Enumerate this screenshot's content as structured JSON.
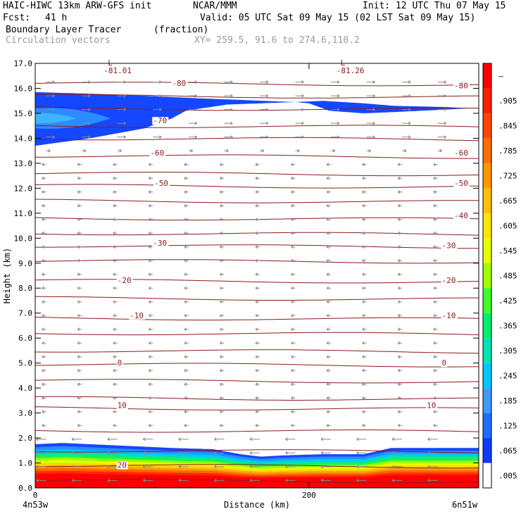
{
  "header": {
    "model": "HAIC-HIWC 13km ARW-GFS init",
    "org": "NCAR/MMM",
    "init": "Init: 12 UTC Thu 07 May 15",
    "fcst_label": "Fcst:",
    "fcst_value": "41 h",
    "valid": "Valid: 05 UTC Sat 09 May 15 (02 LST Sat 09 May 15)",
    "field_name": "Boundary Layer Tracer",
    "field_units": "(fraction)",
    "vector_label": "Circulation vectors",
    "xy_label": "XY= 259.5, 91.6 to 274.6,110.2"
  },
  "chart_data": {
    "type": "heatmap",
    "xlabel": "Distance (km)",
    "ylabel": "Height (km)",
    "xlim": [
      0,
      324
    ],
    "ylim": [
      0,
      17
    ],
    "x_ticks": [
      0,
      200
    ],
    "y_ticks": [
      "0.0",
      "1.0",
      "2.0",
      "3.0",
      "4.0",
      "5.0",
      "6.0",
      "7.0",
      "8.0",
      "9.0",
      "10.0",
      "11.0",
      "12.0",
      "13.0",
      "14.0",
      "15.0",
      "16.0",
      "17.0"
    ],
    "x_end_labels": [
      "4n53w",
      "6n51w"
    ],
    "colorbar_levels": [
      ".005",
      ".065",
      ".125",
      ".185",
      ".245",
      ".305",
      ".365",
      ".425",
      ".485",
      ".545",
      ".605",
      ".665",
      ".725",
      ".785",
      ".845",
      ".905",
      "–"
    ],
    "colorbar_colors": [
      "#ffffff",
      "#0a3cff",
      "#1e6eff",
      "#3c9bff",
      "#00c8ff",
      "#00e6b4",
      "#00f06e",
      "#3cff28",
      "#a0ff00",
      "#e6ff00",
      "#ffe600",
      "#ffbe00",
      "#ff9600",
      "#ff6e00",
      "#ff4600",
      "#ff1e00",
      "#ff0000"
    ],
    "temp_contour_labels": [
      {
        "text": "-81.01",
        "x": 50,
        "z": 16.6,
        "low": "L"
      },
      {
        "text": "-81.26",
        "x": 220,
        "z": 16.6,
        "low": "L"
      },
      {
        "text": "-80",
        "x": 100,
        "z": 16.1
      },
      {
        "text": "-80",
        "x": 306,
        "z": 16.0
      },
      {
        "text": "-70",
        "x": 86,
        "z": 14.6
      },
      {
        "text": "-60",
        "x": 84,
        "z": 13.3
      },
      {
        "text": "-60",
        "x": 306,
        "z": 13.3
      },
      {
        "text": "-50",
        "x": 87,
        "z": 12.1
      },
      {
        "text": "-50",
        "x": 306,
        "z": 12.1
      },
      {
        "text": "-40",
        "x": 306,
        "z": 10.8
      },
      {
        "text": "-30",
        "x": 86,
        "z": 9.7
      },
      {
        "text": "-30",
        "x": 297,
        "z": 9.6
      },
      {
        "text": "-20",
        "x": 60,
        "z": 8.2
      },
      {
        "text": "-20",
        "x": 297,
        "z": 8.2
      },
      {
        "text": "-10",
        "x": 69,
        "z": 6.8
      },
      {
        "text": "-10",
        "x": 297,
        "z": 6.8
      },
      {
        "text": "0",
        "x": 60,
        "z": 4.9
      },
      {
        "text": "0",
        "x": 297,
        "z": 4.9
      },
      {
        "text": "10",
        "x": 60,
        "z": 3.2
      },
      {
        "text": "10",
        "x": 286,
        "z": 3.2
      },
      {
        "text": "20",
        "x": 60,
        "z": 0.8
      }
    ],
    "temp_contour_levels_z": [
      16.2,
      15.7,
      15.2,
      14.5,
      14.0,
      13.3,
      12.6,
      12.1,
      11.5,
      10.8,
      10.2,
      9.7,
      9.1,
      8.3,
      7.6,
      6.8,
      6.2,
      5.5,
      4.95,
      4.3,
      3.6,
      3.2,
      2.3,
      1.5,
      0.9,
      0.3
    ],
    "tracer_upper_top_z": [
      [
        0,
        15.85
      ],
      [
        60,
        15.75
      ],
      [
        120,
        15.6
      ],
      [
        190,
        15.45
      ],
      [
        210,
        15.5
      ],
      [
        240,
        15.4
      ],
      [
        262,
        15.3
      ],
      [
        300,
        15.25
      ],
      [
        318,
        15.2
      ]
    ],
    "tracer_upper_bottom_z": [
      [
        0,
        13.7
      ],
      [
        40,
        14.0
      ],
      [
        80,
        14.4
      ],
      [
        100,
        14.8
      ],
      [
        110,
        15.1
      ],
      [
        140,
        15.35
      ],
      [
        190,
        15.45
      ],
      [
        200,
        15.4
      ],
      [
        215,
        15.1
      ],
      [
        240,
        15.0
      ],
      [
        262,
        15.05
      ],
      [
        300,
        15.15
      ],
      [
        318,
        15.2
      ]
    ],
    "tracer_lower_top_z": [
      [
        0,
        1.75
      ],
      [
        20,
        1.8
      ],
      [
        60,
        1.7
      ],
      [
        100,
        1.6
      ],
      [
        130,
        1.55
      ],
      [
        150,
        1.35
      ],
      [
        165,
        1.25
      ],
      [
        180,
        1.3
      ],
      [
        210,
        1.35
      ],
      [
        240,
        1.35
      ],
      [
        260,
        1.6
      ],
      [
        324,
        1.6
      ]
    ]
  }
}
